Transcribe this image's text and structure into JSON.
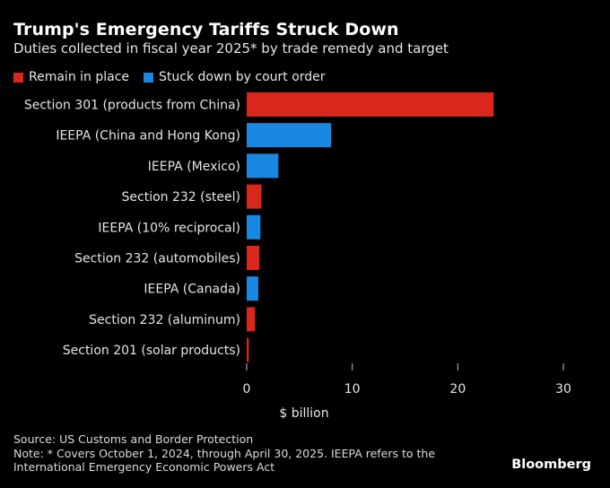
{
  "colors": {
    "remain": "#d9271c",
    "struck": "#1a88e0",
    "tick": "#bbbbbb"
  },
  "chart_data": {
    "type": "bar",
    "orientation": "horizontal",
    "title": "Trump's Emergency Tariffs Struck Down",
    "subtitle": "Duties collected in fiscal year 2025* by trade remedy and target",
    "legend": [
      {
        "key": "remain",
        "label": "Remain in place"
      },
      {
        "key": "struck",
        "label": "Stuck down by court order"
      }
    ],
    "categories": [
      "Section 301 (products from China)",
      "IEEPA (China and Hong Kong)",
      "IEEPA (Mexico)",
      "Section 232 (steel)",
      "IEEPA (10% reciprocal)",
      "Section 232 (automobiles)",
      "IEEPA (Canada)",
      "Section 232 (aluminum)",
      "Section 201 (solar products)"
    ],
    "values": [
      23.4,
      8.0,
      3.0,
      1.4,
      1.3,
      1.2,
      1.1,
      0.8,
      0.2
    ],
    "groups": [
      "remain",
      "struck",
      "struck",
      "remain",
      "struck",
      "remain",
      "struck",
      "remain",
      "remain"
    ],
    "xlim": [
      0,
      30
    ],
    "xticks": [
      0,
      10,
      20,
      30
    ],
    "xlabel": "$ billion",
    "grid": false
  },
  "footer": {
    "source": "Source: US Customs and Border Protection",
    "note_line1": "Note: * Covers October 1, 2024, through April 30, 2025. IEEPA refers to the",
    "note_line2": "International Emergency Economic Powers Act"
  },
  "brand": "Bloomberg"
}
